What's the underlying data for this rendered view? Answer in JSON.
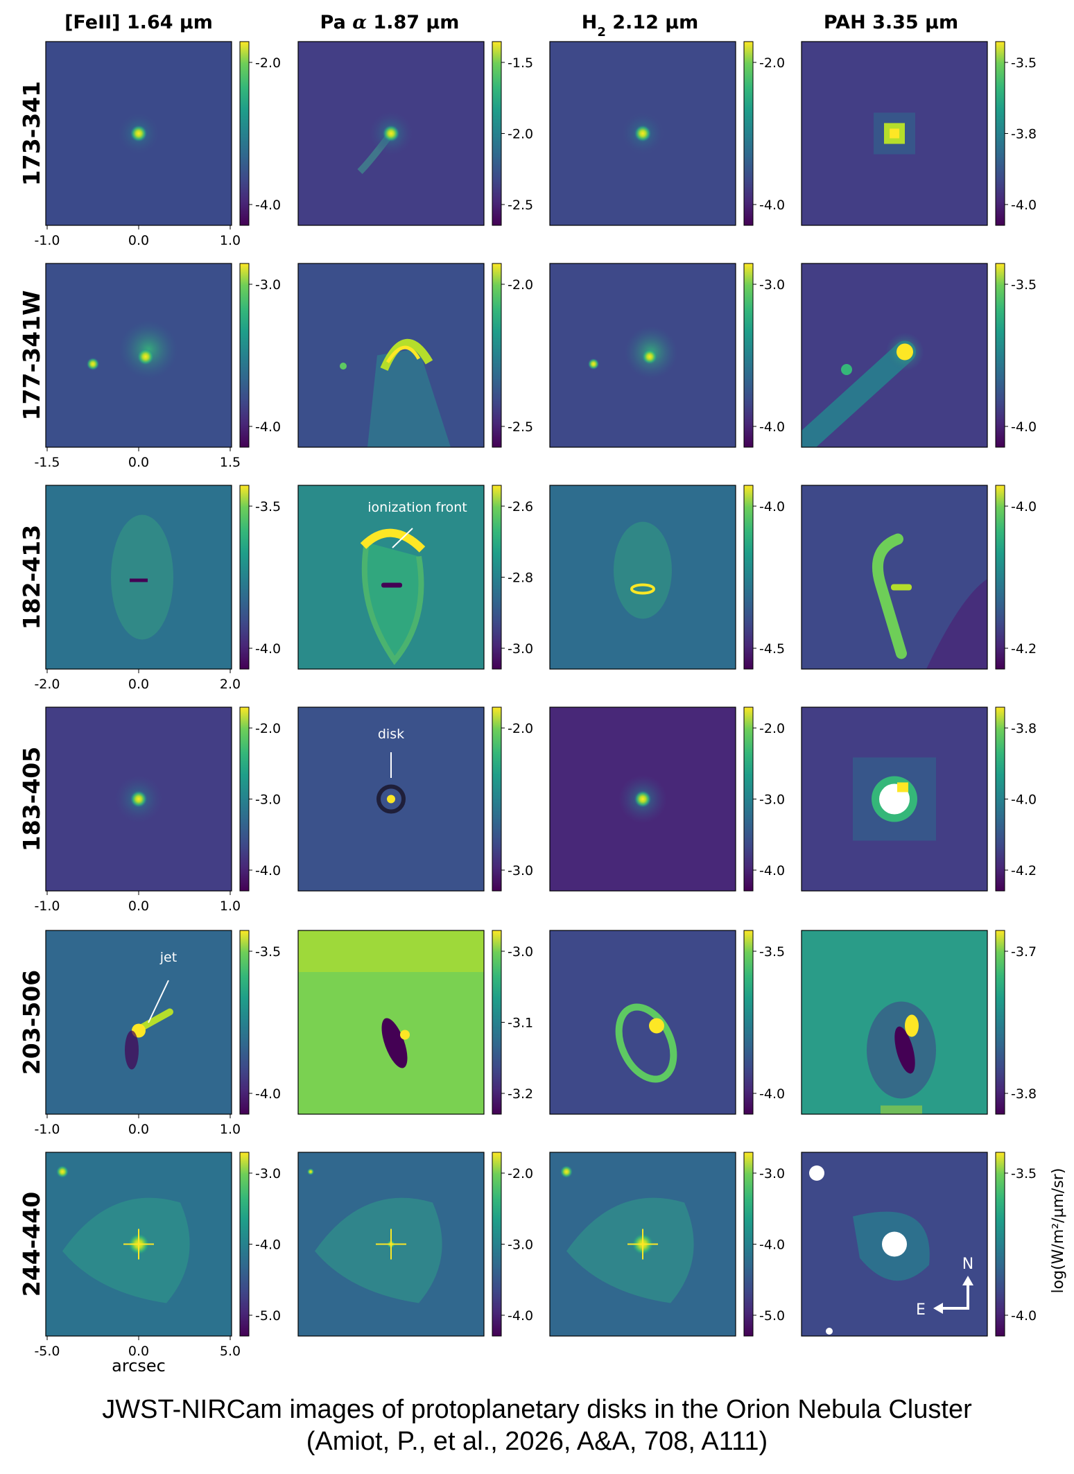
{
  "columns": [
    {
      "label": "[FeII] 1.64 µm"
    },
    {
      "label_main": "Pa ",
      "label_alpha": "α",
      "label_rest": " 1.87 µm"
    },
    {
      "label_main": "H",
      "label_sub": "2",
      "label_rest": " 2.12 µm"
    },
    {
      "label": "PAH 3.35 µm"
    }
  ],
  "rows": [
    {
      "name": "173-341",
      "xticks": [
        "-1.0",
        "0.0",
        "1.0"
      ],
      "cbars": [
        [
          "-2.0",
          "-4.0"
        ],
        [
          "-1.5",
          "-2.0",
          "-2.5"
        ],
        [
          "-2.0",
          "-4.0"
        ],
        [
          "-3.5",
          "-3.8",
          "-4.0"
        ]
      ]
    },
    {
      "name": "177-341W",
      "xticks": [
        "-1.5",
        "0.0",
        "1.5"
      ],
      "cbars": [
        [
          "-3.0",
          "-4.0"
        ],
        [
          "-2.0",
          "-2.5"
        ],
        [
          "-3.0",
          "-4.0"
        ],
        [
          "-3.5",
          "-4.0"
        ]
      ]
    },
    {
      "name": "182-413",
      "xticks": [
        "-2.0",
        "0.0",
        "2.0"
      ],
      "cbars": [
        [
          "-3.5",
          "-4.0"
        ],
        [
          "-2.6",
          "-2.8",
          "-3.0"
        ],
        [
          "-4.0",
          "-4.5"
        ],
        [
          "-4.0",
          "-4.2"
        ]
      ]
    },
    {
      "name": "183-405",
      "xticks": [
        "-1.0",
        "0.0",
        "1.0"
      ],
      "cbars": [
        [
          "-2.0",
          "-3.0",
          "-4.0"
        ],
        [
          "-2.0",
          "-3.0"
        ],
        [
          "-2.0",
          "-3.0",
          "-4.0"
        ],
        [
          "-3.8",
          "-4.0",
          "-4.2"
        ]
      ]
    },
    {
      "name": "203-506",
      "xticks": [
        "-1.0",
        "0.0",
        "1.0"
      ],
      "cbars": [
        [
          "-3.5",
          "-4.0"
        ],
        [
          "-3.0",
          "-3.1",
          "-3.2"
        ],
        [
          "-3.5",
          "-4.0"
        ],
        [
          "-3.7",
          "-3.8"
        ]
      ]
    },
    {
      "name": "244-440",
      "xticks": [
        "-5.0",
        "0.0",
        "5.0"
      ],
      "cbars": [
        [
          "-3.0",
          "-4.0",
          "-5.0"
        ],
        [
          "-2.0",
          "-3.0",
          "-4.0"
        ],
        [
          "-3.0",
          "-4.0",
          "-5.0"
        ],
        [
          "-3.5",
          "-4.0"
        ]
      ]
    }
  ],
  "annotations": {
    "ionization_front": "ionization front",
    "disk": "disk",
    "jet": "jet"
  },
  "xlabel": "arcsec",
  "cbar_label": "log(W/m²/µm/sr)",
  "compass": {
    "north": "N",
    "east": "E"
  },
  "caption": {
    "line1": "JWST-NIRCam images of protoplanetary disks in the Orion Nebula Cluster",
    "line2": "(Amiot, P., et al., 2026,  A&A, 708, A111)"
  },
  "colors": {
    "viridis_dark": "#440154",
    "viridis_mid": "#21918c",
    "viridis_bright": "#fde725",
    "panel_background": "#3b528b"
  }
}
